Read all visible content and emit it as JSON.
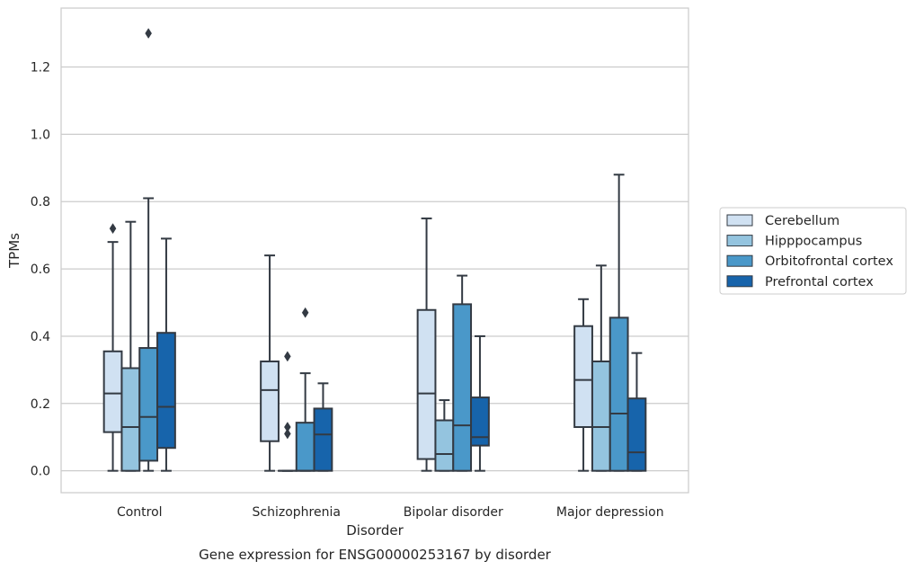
{
  "chart_data": {
    "type": "box",
    "title": "Gene expression for ENSG00000253167 by disorder",
    "xlabel": "Disorder",
    "ylabel": "TPMs",
    "ylim": [
      -0.065,
      1.375
    ],
    "yticks": [
      "0.0",
      "0.2",
      "0.4",
      "0.6",
      "0.8",
      "1.0",
      "1.2"
    ],
    "grid": true,
    "legend_position": "right",
    "categories": [
      "Control",
      "Schizophrenia",
      "Bipolar disorder",
      "Major depression"
    ],
    "series": [
      {
        "name": "Cerebellum",
        "color": "#d0e1f2",
        "boxes": [
          {
            "q1": 0.115,
            "median": 0.23,
            "q3": 0.355,
            "whislo": 0.0,
            "whishi": 0.68,
            "fliers": [
              0.72
            ]
          },
          {
            "q1": 0.088,
            "median": 0.24,
            "q3": 0.325,
            "whislo": 0.0,
            "whishi": 0.64,
            "fliers": []
          },
          {
            "q1": 0.035,
            "median": 0.23,
            "q3": 0.478,
            "whislo": 0.0,
            "whishi": 0.75,
            "fliers": []
          },
          {
            "q1": 0.13,
            "median": 0.27,
            "q3": 0.43,
            "whislo": 0.0,
            "whishi": 0.51,
            "fliers": []
          }
        ]
      },
      {
        "name": "Hipppocampus",
        "color": "#94c4df",
        "boxes": [
          {
            "q1": 0.0,
            "median": 0.13,
            "q3": 0.305,
            "whislo": 0.0,
            "whishi": 0.74,
            "fliers": []
          },
          {
            "q1": 0.0,
            "median": 0.0,
            "q3": 0.0,
            "whislo": 0.0,
            "whishi": 0.0,
            "fliers": [
              0.34,
              0.13,
              0.11
            ]
          },
          {
            "q1": 0.0,
            "median": 0.05,
            "q3": 0.15,
            "whislo": 0.0,
            "whishi": 0.21,
            "fliers": []
          },
          {
            "q1": 0.0,
            "median": 0.13,
            "q3": 0.325,
            "whislo": 0.0,
            "whishi": 0.61,
            "fliers": []
          }
        ]
      },
      {
        "name": "Orbitofrontal cortex",
        "color": "#4a98c9",
        "boxes": [
          {
            "q1": 0.03,
            "median": 0.16,
            "q3": 0.365,
            "whislo": 0.0,
            "whishi": 0.81,
            "fliers": [
              1.3
            ]
          },
          {
            "q1": 0.0,
            "median": 0.0,
            "q3": 0.143,
            "whislo": 0.0,
            "whishi": 0.29,
            "fliers": [
              0.47
            ]
          },
          {
            "q1": 0.0,
            "median": 0.135,
            "q3": 0.495,
            "whislo": 0.0,
            "whishi": 0.58,
            "fliers": []
          },
          {
            "q1": 0.0,
            "median": 0.17,
            "q3": 0.455,
            "whislo": 0.0,
            "whishi": 0.88,
            "fliers": []
          }
        ]
      },
      {
        "name": "Prefrontal cortex",
        "color": "#1764ab",
        "boxes": [
          {
            "q1": 0.068,
            "median": 0.19,
            "q3": 0.41,
            "whislo": 0.0,
            "whishi": 0.69,
            "fliers": []
          },
          {
            "q1": 0.0,
            "median": 0.108,
            "q3": 0.185,
            "whislo": 0.0,
            "whishi": 0.26,
            "fliers": []
          },
          {
            "q1": 0.075,
            "median": 0.1,
            "q3": 0.218,
            "whislo": 0.0,
            "whishi": 0.4,
            "fliers": []
          },
          {
            "q1": 0.0,
            "median": 0.055,
            "q3": 0.215,
            "whislo": 0.0,
            "whishi": 0.35,
            "fliers": []
          }
        ]
      }
    ]
  }
}
